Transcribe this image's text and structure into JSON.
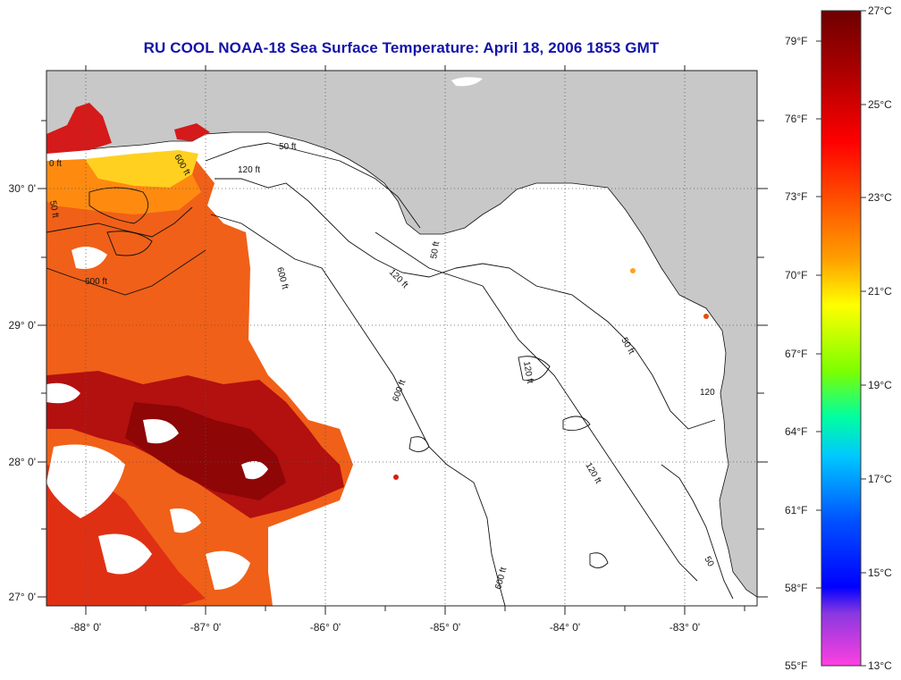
{
  "title": "RU COOL  NOAA-18  Sea Surface Temperature:  April 18, 2006 1853 GMT",
  "map": {
    "lon_labels": [
      "-88° 0'",
      "-87° 0'",
      "-86° 0'",
      "-85° 0'",
      "-84° 0'",
      "-83° 0'"
    ],
    "lat_labels": [
      "30° 0'",
      "29° 0'",
      "28° 0'",
      "27° 0'"
    ],
    "contour_labels": [
      "50 ft",
      "120 ft",
      "600 ft",
      "120 ft",
      "50 ft",
      "600 ft",
      "120 ft",
      "600 ft",
      "50 ft",
      "120",
      "120 ft",
      "600 ft",
      "50 ft",
      "0 ft",
      "600 ft",
      "50"
    ],
    "land_color": "#c8c8c8",
    "cloud_color": "#ffffff"
  },
  "colorbar": {
    "fahrenheit": [
      "79°F",
      "76°F",
      "73°F",
      "70°F",
      "67°F",
      "64°F",
      "61°F",
      "58°F",
      "55°F"
    ],
    "celsius": [
      "27°C",
      "25°C",
      "23°C",
      "21°C",
      "19°C",
      "17°C",
      "15°C",
      "13°C"
    ],
    "colors_top_to_bottom": [
      "#6e0000",
      "#b00000",
      "#ff0000",
      "#ff5a00",
      "#ffa000",
      "#ffff00",
      "#7cff00",
      "#00ffa0",
      "#00c8ff",
      "#0050ff",
      "#0000ff",
      "#8a38e0",
      "#ff40e0"
    ]
  }
}
